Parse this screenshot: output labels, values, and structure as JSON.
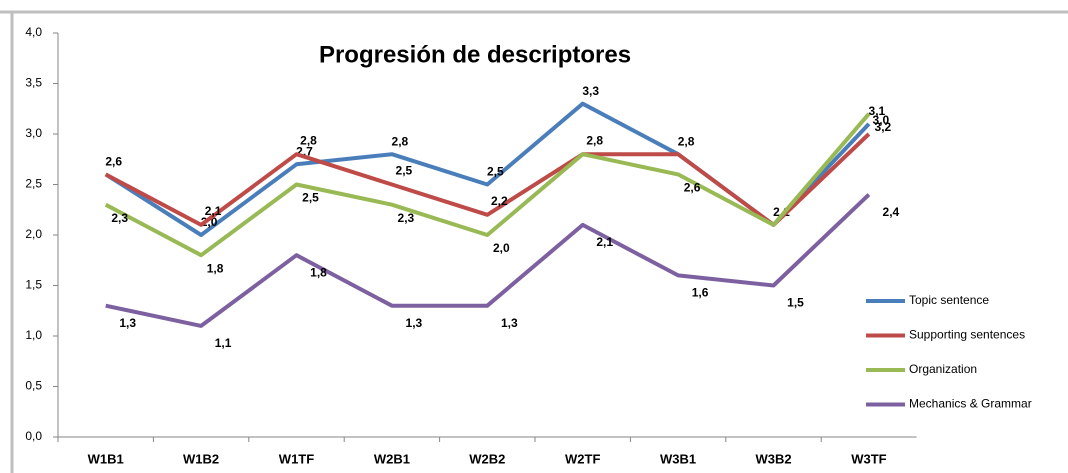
{
  "chart_data": {
    "type": "line",
    "title": "Progresión de descriptores",
    "categories": [
      "W1B1",
      "W1B2",
      "W1TF",
      "W2B1",
      "W2B2",
      "W2TF",
      "W3B1",
      "W3B2",
      "W3TF"
    ],
    "ylim": [
      0,
      4
    ],
    "yticks": [
      {
        "value": 0,
        "label": "0,0"
      },
      {
        "value": 0.5,
        "label": "0,5"
      },
      {
        "value": 1,
        "label": "1,0"
      },
      {
        "value": 1.5,
        "label": "1,5"
      },
      {
        "value": 2,
        "label": "2,0"
      },
      {
        "value": 2.5,
        "label": "2,5"
      },
      {
        "value": 3,
        "label": "3,0"
      },
      {
        "value": 3.5,
        "label": "3,5"
      },
      {
        "value": 4,
        "label": "4,0"
      }
    ],
    "legend": "right",
    "series": [
      {
        "name": "Topic sentence",
        "color": "#4a7ebb",
        "values": [
          2.6,
          2.0,
          2.7,
          2.8,
          2.5,
          3.3,
          2.8,
          2.1,
          3.1
        ],
        "value_labels": [
          "2,6",
          "2,0",
          "2,7",
          "2,8",
          "2,5",
          "3,3",
          "2,8",
          "2,1",
          "3,1"
        ]
      },
      {
        "name": "Supporting sentences",
        "color": "#be4b48",
        "values": [
          2.6,
          2.1,
          2.8,
          2.5,
          2.2,
          2.8,
          2.8,
          2.1,
          3.0
        ],
        "value_labels": [
          null,
          "2,1",
          "2,8",
          "2,5",
          "2,2",
          "2,8",
          null,
          null,
          "3,0"
        ]
      },
      {
        "name": "Organization",
        "color": "#98b954",
        "values": [
          2.3,
          1.8,
          2.5,
          2.3,
          2.0,
          2.8,
          2.6,
          2.1,
          3.2
        ],
        "value_labels": [
          "2,3",
          "1,8",
          "2,5",
          "2,3",
          "2,0",
          null,
          "2,6",
          null,
          "3,2"
        ]
      },
      {
        "name": "Mechanics & Grammar",
        "color": "#7d60a0",
        "values": [
          1.3,
          1.1,
          1.8,
          1.3,
          1.3,
          2.1,
          1.6,
          1.5,
          2.4
        ],
        "value_labels": [
          "1,3",
          "1,1",
          "1,8",
          "1,3",
          "1,3",
          "2,1",
          "1,6",
          "1,5",
          "2,4"
        ]
      }
    ]
  }
}
